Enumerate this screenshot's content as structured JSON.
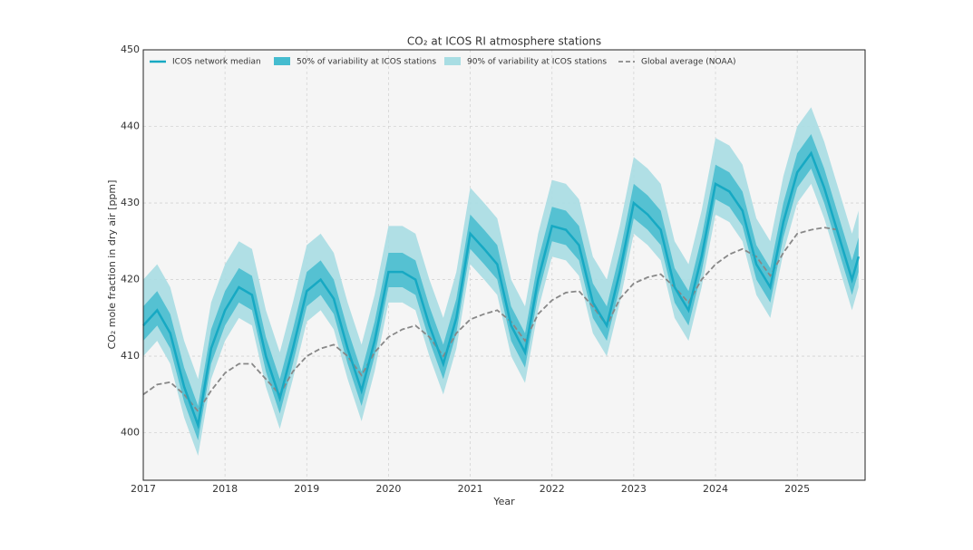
{
  "chart_data": {
    "type": "line",
    "title": "CO₂ at ICOS RI atmosphere stations",
    "x_label": "Year",
    "y_label": "CO₂ mole fraction in dry air [ppm]",
    "xlim": [
      2017,
      2025.83
    ],
    "xticks": [
      2017,
      2018,
      2019,
      2020,
      2021,
      2022,
      2023,
      2024,
      2025
    ],
    "ylim": [
      393.8,
      450
    ],
    "yticks": [
      400,
      410,
      420,
      430,
      440,
      450
    ],
    "grid": true,
    "legend": "top",
    "x": [
      2017,
      2017.17,
      2017.33,
      2017.5,
      2017.67,
      2017.83,
      2018,
      2018.17,
      2018.33,
      2018.5,
      2018.67,
      2018.83,
      2019,
      2019.17,
      2019.33,
      2019.5,
      2019.67,
      2019.83,
      2020,
      2020.17,
      2020.33,
      2020.5,
      2020.67,
      2020.83,
      2021,
      2021.17,
      2021.33,
      2021.5,
      2021.67,
      2021.83,
      2022,
      2022.17,
      2022.33,
      2022.5,
      2022.67,
      2022.83,
      2023,
      2023.17,
      2023.33,
      2023.5,
      2023.67,
      2023.83,
      2024,
      2024.17,
      2024.33,
      2024.5,
      2024.67,
      2024.83,
      2025,
      2025.17,
      2025.33,
      2025.5,
      2025.67,
      2025.75
    ],
    "series": [
      {
        "name": "ICOS network median",
        "kind": "line",
        "color": "#17a9c3",
        "values": [
          414,
          416,
          413,
          406,
          401,
          411,
          416,
          419,
          418,
          410,
          404.5,
          411,
          418.5,
          420,
          417.5,
          411,
          405.5,
          412,
          421,
          421,
          420,
          414,
          409,
          415,
          426,
          424,
          422,
          414,
          410.5,
          420,
          427,
          426.5,
          424.5,
          417,
          414,
          421,
          430,
          428.5,
          426.5,
          419,
          416,
          423,
          432.5,
          431.5,
          429,
          422,
          419,
          427.5,
          434,
          436.5,
          432,
          426,
          420,
          423
        ]
      },
      {
        "name": "50% of variability at ICOS stations",
        "kind": "band",
        "color": "#45bccf",
        "lower": [
          412,
          414,
          411,
          404,
          399,
          409,
          414,
          417,
          416,
          408,
          402.5,
          409,
          416.5,
          418,
          415.5,
          409,
          403.5,
          410,
          419,
          419,
          418,
          412,
          407,
          413,
          424,
          422,
          420,
          412,
          408.5,
          418,
          425,
          424.5,
          422.5,
          415,
          412,
          419,
          428,
          426.5,
          424.5,
          417,
          414,
          421,
          430.5,
          429.5,
          427,
          420,
          417,
          425.5,
          432,
          434.5,
          430,
          424,
          418,
          421
        ],
        "upper": [
          416.5,
          418.5,
          415.5,
          408.5,
          403.5,
          413.5,
          418.5,
          421.5,
          420.5,
          412.5,
          407,
          413.5,
          421,
          422.5,
          420,
          413.5,
          408,
          414.5,
          423.5,
          423.5,
          422.5,
          416.5,
          411.5,
          417.5,
          428.5,
          426.5,
          424.5,
          416.5,
          413,
          422.5,
          429.5,
          429,
          427,
          419.5,
          416.5,
          423.5,
          432.5,
          431,
          429,
          421.5,
          418.5,
          425.5,
          435,
          434,
          431.5,
          424.5,
          421.5,
          430,
          436.5,
          439,
          434.5,
          428.5,
          422.5,
          425.5
        ]
      },
      {
        "name": "90% of variability at ICOS stations",
        "kind": "band",
        "color": "#a8dde3",
        "lower": [
          410,
          412,
          409,
          402,
          397,
          407,
          412,
          415,
          414,
          406,
          400.5,
          407,
          414.5,
          416,
          413.5,
          407,
          401.5,
          408,
          417,
          417,
          416,
          410,
          405,
          411,
          422,
          420,
          418,
          410,
          406.5,
          416,
          423,
          422.5,
          420.5,
          413,
          410,
          417,
          426,
          424.5,
          422.5,
          415,
          412,
          419,
          428.5,
          427.5,
          425,
          418,
          415,
          423.5,
          430,
          432.5,
          428,
          422,
          416,
          419
        ],
        "upper": [
          420,
          422,
          419,
          412,
          407,
          417,
          422,
          425,
          424,
          416,
          410.5,
          417,
          424.5,
          426,
          423.5,
          417,
          411.5,
          418,
          427,
          427,
          426,
          420,
          415,
          421,
          432,
          430,
          428,
          420,
          416.5,
          426,
          433,
          432.5,
          430.5,
          423,
          420,
          427,
          436,
          434.5,
          432.5,
          425,
          422,
          429,
          438.5,
          437.5,
          435,
          428,
          425,
          433.5,
          440,
          442.5,
          438,
          432,
          426,
          429
        ]
      },
      {
        "name": "Global average (NOAA)",
        "kind": "dashed",
        "color": "#888888",
        "values": [
          405,
          406.3,
          406.6,
          405,
          402.8,
          405.5,
          407.8,
          409,
          409,
          407,
          405,
          408,
          410,
          411,
          411.5,
          410,
          407.5,
          410.5,
          412.5,
          413.5,
          414,
          412.5,
          410,
          413,
          414.8,
          415.5,
          416,
          414.5,
          412,
          415.5,
          417.3,
          418.3,
          418.5,
          416.5,
          414,
          417.5,
          419.5,
          420.3,
          420.7,
          419,
          417,
          420,
          422,
          423.3,
          424,
          423,
          420.5,
          423.5,
          426,
          426.5,
          426.8,
          426.5,
          null,
          null
        ]
      }
    ]
  }
}
